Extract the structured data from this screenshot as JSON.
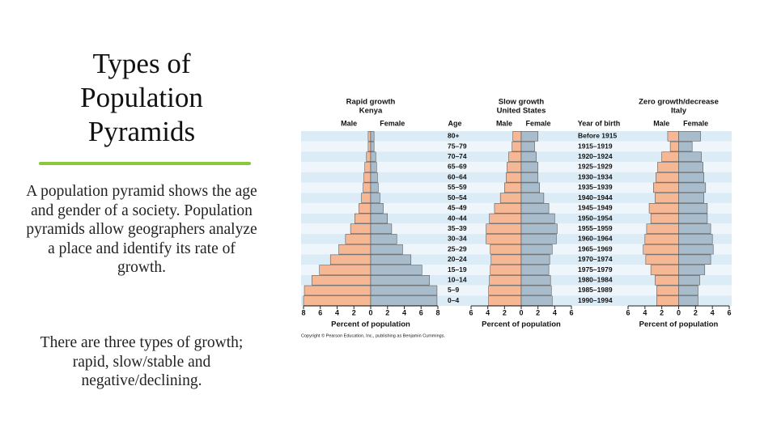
{
  "title": "Types of Population Pyramids",
  "paragraphs": [
    "A population pyramid shows the age and gender of a society.  Population pyramids allow geographers analyze a place and identify its rate of growth.",
    "There are three types of growth; rapid, slow/stable and negative/declining."
  ],
  "age_axis": {
    "label": "Age",
    "categories": [
      "80+",
      "75–79",
      "70–74",
      "65–69",
      "60–64",
      "55–59",
      "50–54",
      "45–49",
      "40–44",
      "35–39",
      "30–34",
      "25–29",
      "20–24",
      "15–19",
      "10–14",
      "5–9",
      "0–4"
    ]
  },
  "birth_year_axis": {
    "label": "Year of birth",
    "categories": [
      "Before 1915",
      "1915–1919",
      "1920–1924",
      "1925–1929",
      "1930–1934",
      "1935–1939",
      "1940–1944",
      "1945–1949",
      "1950–1954",
      "1955–1959",
      "1960–1964",
      "1965–1969",
      "1970–1974",
      "1975–1979",
      "1980–1984",
      "1985–1989",
      "1990–1994"
    ]
  },
  "copyright": "Copyright © Pearson Education, Inc., publishing as Benjamin Cummings.",
  "chart_data": [
    {
      "type": "pyramid",
      "title": "Rapid growth",
      "subtitle": "Kenya",
      "xlabel": "Percent of population",
      "xlim": [
        -8,
        8
      ],
      "xticks": [
        {
          "value": -8,
          "label": "8"
        },
        {
          "value": -6,
          "label": "6"
        },
        {
          "value": -4,
          "label": "4"
        },
        {
          "value": -2,
          "label": "2"
        },
        0,
        2,
        4,
        6,
        8
      ],
      "series": [
        {
          "name": "Male",
          "color": "#f6b894",
          "values": [
            0.3,
            0.3,
            0.5,
            0.7,
            0.8,
            0.9,
            1.1,
            1.4,
            1.9,
            2.4,
            3.0,
            3.8,
            4.8,
            6.1,
            7.0,
            7.9,
            8.0
          ]
        },
        {
          "name": "Female",
          "color": "#a9bccb",
          "values": [
            0.4,
            0.4,
            0.6,
            0.7,
            0.8,
            0.9,
            1.1,
            1.5,
            2.0,
            2.5,
            3.1,
            3.8,
            4.8,
            6.1,
            7.0,
            7.9,
            7.9
          ]
        }
      ]
    },
    {
      "type": "pyramid",
      "title": "Slow growth",
      "subtitle": "United States",
      "xlabel": "Percent of population",
      "xlim": [
        -6,
        6
      ],
      "xticks": [
        {
          "value": -6,
          "label": "6"
        },
        {
          "value": -4,
          "label": "4"
        },
        {
          "value": -2,
          "label": "2"
        },
        0,
        2,
        4,
        6
      ],
      "series": [
        {
          "name": "Male",
          "color": "#f6b894",
          "values": [
            1.0,
            1.1,
            1.5,
            1.7,
            1.8,
            2.0,
            2.5,
            3.2,
            3.8,
            4.2,
            4.2,
            3.7,
            3.6,
            3.7,
            3.8,
            3.9,
            3.9
          ]
        },
        {
          "name": "Female",
          "color": "#a9bccb",
          "values": [
            2.0,
            1.6,
            1.8,
            2.0,
            2.0,
            2.2,
            2.7,
            3.3,
            4.0,
            4.3,
            4.2,
            3.7,
            3.4,
            3.3,
            3.5,
            3.6,
            3.7
          ]
        }
      ]
    },
    {
      "type": "pyramid",
      "title": "Zero growth/decrease",
      "subtitle": "Italy",
      "xlabel": "Percent of population",
      "xlim": [
        -6,
        6
      ],
      "xticks": [
        {
          "value": -6,
          "label": "6"
        },
        {
          "value": -4,
          "label": "4"
        },
        {
          "value": -2,
          "label": "2"
        },
        0,
        2,
        4,
        6
      ],
      "series": [
        {
          "name": "Male",
          "color": "#f6b894",
          "values": [
            1.3,
            1.0,
            2.0,
            2.5,
            2.7,
            3.0,
            2.8,
            3.5,
            3.3,
            3.8,
            4.0,
            4.2,
            3.9,
            3.3,
            2.8,
            2.6,
            2.6
          ]
        },
        {
          "name": "Female",
          "color": "#a9bccb",
          "values": [
            2.6,
            1.6,
            2.7,
            2.9,
            3.0,
            3.2,
            3.0,
            3.4,
            3.4,
            3.8,
            4.0,
            4.1,
            3.8,
            3.1,
            2.5,
            2.3,
            2.3
          ]
        }
      ]
    }
  ]
}
